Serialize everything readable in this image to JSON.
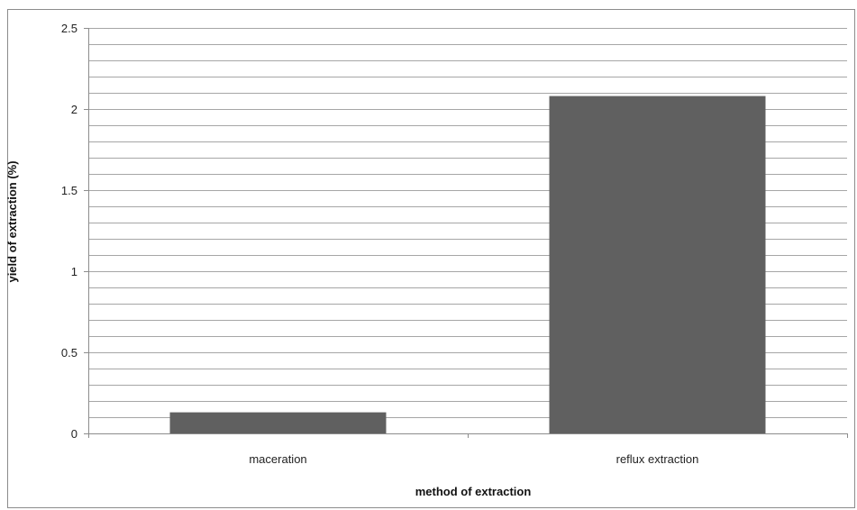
{
  "chart_data": {
    "type": "bar",
    "categories": [
      "maceration",
      "reflux extraction"
    ],
    "values": [
      0.13,
      2.08
    ],
    "title": "",
    "xlabel": "method of extraction",
    "ylabel": "yield of extraction (%)",
    "ylim": [
      0,
      2.5
    ],
    "y_major_ticks": [
      0,
      0.5,
      1,
      1.5,
      2,
      2.5
    ],
    "y_minor_step": 0.1,
    "y_tick_labels": [
      "0",
      "0.5",
      "1",
      "1.5",
      "2",
      "2.5"
    ],
    "grid": true,
    "legend": "none",
    "bar_color": "#606060",
    "grid_color": "#a6a6a6",
    "border_color": "#8c8c8c"
  }
}
